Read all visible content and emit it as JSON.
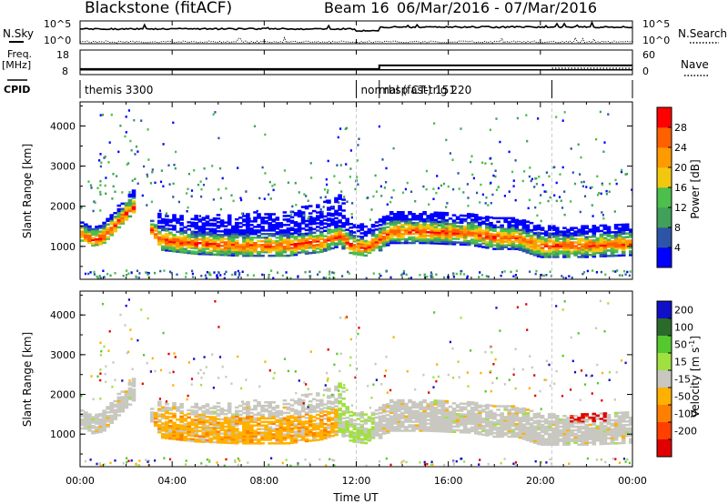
{
  "header": {
    "station": "Blackstone (fitACF)",
    "beam": "Beam 16",
    "dates": "06/Mar/2016 - 07/Mar/2016"
  },
  "params": {
    "nsky_label": "N.Sky",
    "nsky_ticks": [
      "10^5",
      "10^0"
    ],
    "nsearch_label": "N.Search",
    "nsearch_ticks": [
      "10^5",
      "10^0"
    ],
    "freq_label": "Freq.",
    "freq_unit": "[MHz]",
    "freq_ticks": [
      "18",
      "8"
    ],
    "nave_label": "Nave",
    "nave_ticks": [
      "60",
      "0"
    ],
    "cpid_label": "CPID",
    "freq_value_mhz": 10.5,
    "nave_segments": [
      {
        "from": 0,
        "to": 13,
        "value": 18
      },
      {
        "from": 13,
        "to": 24,
        "value": 32
      }
    ]
  },
  "cpid": [
    {
      "label": "themis 3300",
      "from": 0,
      "to": 12
    },
    {
      "label": "normal (fast) 151",
      "from": 12,
      "to": 13
    },
    {
      "label": "rbsp CT-trig 220",
      "from": 13,
      "to": 20.5
    }
  ],
  "colors": {
    "power": [
      "#0000ff",
      "#2c55a8",
      "#41a05a",
      "#4cbf4c",
      "#f2c80f",
      "#ff9a00",
      "#ff6000",
      "#ff0000"
    ],
    "velocity": [
      "#1010c8",
      "#2c6a2c",
      "#55c830",
      "#a0e040",
      "#c8c8c0",
      "#ffb000",
      "#ff8000",
      "#ff4000",
      "#e00000"
    ]
  },
  "chart_data": [
    {
      "type": "heatmap",
      "panel": "power",
      "xlabel": "",
      "ylabel": "Slant Range [km]",
      "xlim": [
        0,
        24
      ],
      "ylim": [
        180,
        4600
      ],
      "xticks": [
        "00:00",
        "04:00",
        "08:00",
        "12:00",
        "16:00",
        "20:00",
        "00:00"
      ],
      "yticks": [
        1000,
        2000,
        3000,
        4000
      ],
      "colorbar": {
        "label": "Power [dB]",
        "ticks": [
          4,
          8,
          12,
          16,
          20,
          24,
          28
        ],
        "range": [
          0,
          32
        ]
      },
      "ridge": [
        [
          0,
          1300
        ],
        [
          0.5,
          1150
        ],
        [
          1,
          1200
        ],
        [
          1.5,
          1500
        ],
        [
          2,
          1800
        ],
        [
          2.3,
          1950
        ],
        [
          3.5,
          1150
        ],
        [
          5,
          1050
        ],
        [
          7,
          1000
        ],
        [
          9,
          1000
        ],
        [
          10.5,
          1100
        ],
        [
          11.3,
          1250
        ],
        [
          11.8,
          1000
        ],
        [
          12.5,
          950
        ],
        [
          13.5,
          1350
        ],
        [
          15,
          1350
        ],
        [
          17,
          1300
        ],
        [
          18,
          1200
        ],
        [
          19,
          1200
        ],
        [
          20,
          1000
        ],
        [
          22,
          1000
        ],
        [
          24,
          1050
        ]
      ]
    },
    {
      "type": "heatmap",
      "panel": "velocity",
      "xlabel": "Time UT",
      "ylabel": "Slant Range [km]",
      "xlim": [
        0,
        24
      ],
      "ylim": [
        180,
        4600
      ],
      "xticks": [
        "00:00",
        "04:00",
        "08:00",
        "12:00",
        "16:00",
        "20:00",
        "00:00"
      ],
      "yticks": [
        1000,
        2000,
        3000,
        4000
      ],
      "colorbar": {
        "label": "Velocity [m s",
        "unit_sup": "-1",
        "ticks": [
          "200",
          "100",
          "50",
          "15",
          "-15",
          "-50",
          "-100",
          "-200"
        ]
      }
    }
  ]
}
